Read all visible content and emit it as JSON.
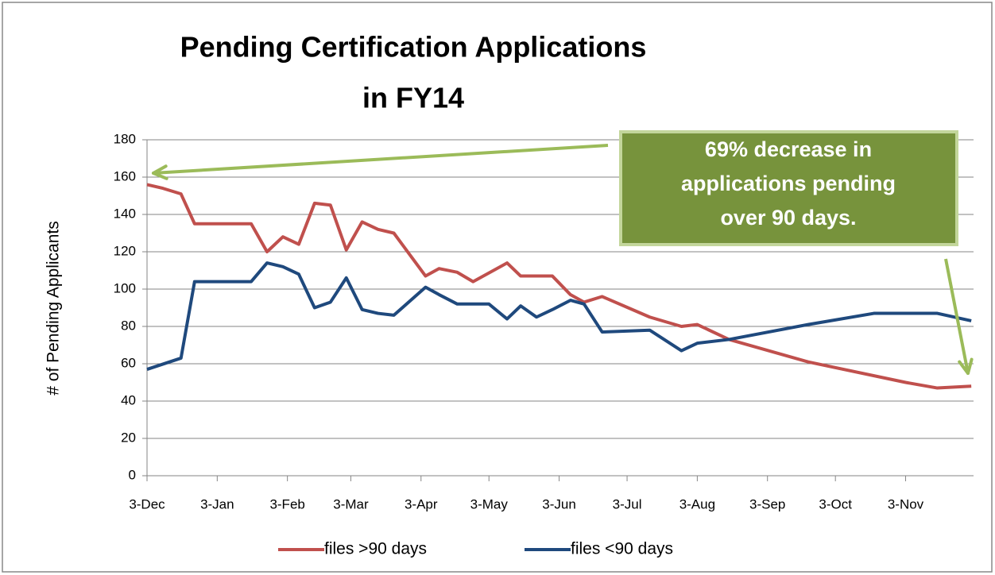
{
  "chart_data": {
    "type": "line",
    "title": [
      "Pending Certification Applications",
      "in FY14"
    ],
    "y_label": "# of Pending Applicants",
    "annotation": [
      "69% decrease in",
      "applications pending",
      "over 90 days."
    ],
    "xlim": [
      0,
      365
    ],
    "xticks": [
      {
        "value": 0,
        "label": "3-Dec"
      },
      {
        "value": 31,
        "label": "3-Jan"
      },
      {
        "value": 62,
        "label": "3-Feb"
      },
      {
        "value": 90,
        "label": "3-Mar"
      },
      {
        "value": 121,
        "label": "3-Apr"
      },
      {
        "value": 151,
        "label": "3-May"
      },
      {
        "value": 182,
        "label": "3-Jun"
      },
      {
        "value": 212,
        "label": "3-Jul"
      },
      {
        "value": 243,
        "label": "3-Aug"
      },
      {
        "value": 274,
        "label": "3-Sep"
      },
      {
        "value": 304,
        "label": "3-Oct"
      },
      {
        "value": 335,
        "label": "3-Nov"
      }
    ],
    "ylim": [
      0,
      180
    ],
    "yticks": [
      0,
      20,
      40,
      60,
      80,
      100,
      120,
      140,
      160,
      180
    ],
    "grid": true,
    "legend": "bottom",
    "series": [
      {
        "name": "files >90 days",
        "color": "#c0504d",
        "x": [
          0,
          7,
          15,
          21,
          46,
          53,
          60,
          67,
          74,
          81,
          88,
          95,
          102,
          109,
          123,
          129,
          137,
          144,
          159,
          165,
          179,
          187,
          193,
          201,
          222,
          236,
          243,
          257,
          292,
          335,
          349,
          364
        ],
        "values": [
          156,
          154,
          151,
          135,
          135,
          120,
          128,
          124,
          146,
          145,
          121,
          136,
          132,
          130,
          107,
          111,
          109,
          104,
          114,
          107,
          107,
          97,
          93,
          96,
          85,
          80,
          81,
          73,
          61,
          50,
          47,
          48
        ]
      },
      {
        "name": "files <90 days",
        "color": "#1f497d",
        "x": [
          0,
          15,
          21,
          46,
          53,
          60,
          67,
          74,
          81,
          88,
          95,
          102,
          109,
          123,
          129,
          137,
          151,
          159,
          165,
          172,
          179,
          187,
          193,
          201,
          222,
          236,
          243,
          257,
          292,
          321,
          349,
          364
        ],
        "values": [
          57,
          63,
          104,
          104,
          114,
          112,
          108,
          90,
          93,
          106,
          89,
          87,
          86,
          101,
          97,
          92,
          92,
          84,
          91,
          85,
          89,
          94,
          92,
          77,
          78,
          67,
          71,
          73,
          81,
          87,
          87,
          83
        ]
      }
    ]
  }
}
